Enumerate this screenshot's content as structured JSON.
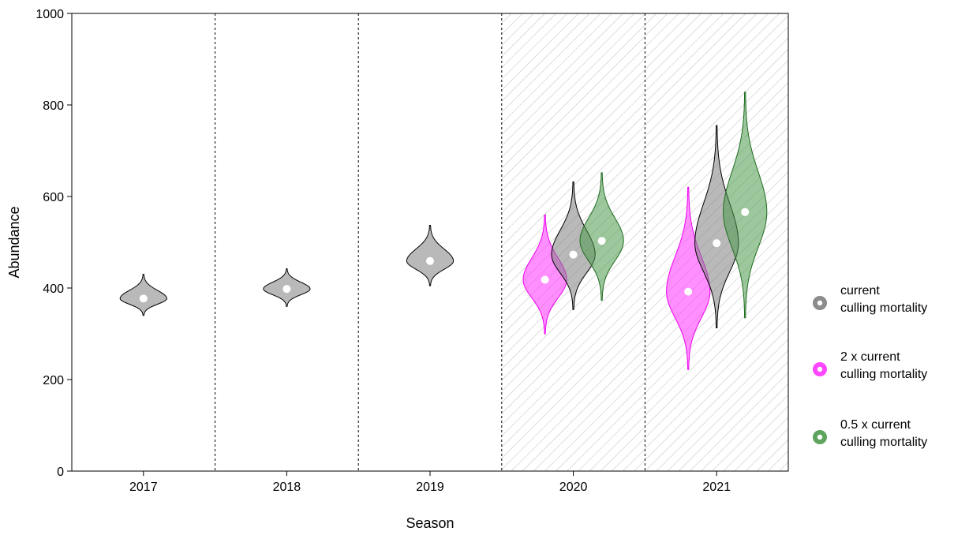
{
  "chart_data": {
    "type": "violin",
    "xlabel": "Season",
    "ylabel": "Abundance",
    "ylim": [
      0,
      1000
    ],
    "yticks": [
      0,
      200,
      400,
      600,
      800,
      1000
    ],
    "categories": [
      "2017",
      "2018",
      "2019",
      "2020",
      "2021"
    ],
    "projected_categories": [
      "2020",
      "2021"
    ],
    "projection_shading": "hatched",
    "grid": false,
    "legend_position": "right",
    "series": [
      {
        "name": "current\nculling mortality",
        "color": "#7f7f7f",
        "violins": [
          {
            "category": "2017",
            "median": 377,
            "min": 340,
            "max": 430
          },
          {
            "category": "2018",
            "median": 398,
            "min": 360,
            "max": 442
          },
          {
            "category": "2019",
            "median": 459,
            "min": 405,
            "max": 537
          },
          {
            "category": "2020",
            "median": 473,
            "min": 353,
            "max": 632
          },
          {
            "category": "2021",
            "median": 498,
            "min": 313,
            "max": 755
          }
        ]
      },
      {
        "name": "2 x current\nculling mortality",
        "color": "#ff33ff",
        "violins": [
          {
            "category": "2020",
            "median": 418,
            "min": 300,
            "max": 560
          },
          {
            "category": "2021",
            "median": 392,
            "min": 222,
            "max": 620
          }
        ]
      },
      {
        "name": "0.5 x current\nculling mortality",
        "color": "#4c9a4c",
        "violins": [
          {
            "category": "2020",
            "median": 503,
            "min": 373,
            "max": 652
          },
          {
            "category": "2021",
            "median": 566,
            "min": 335,
            "max": 828
          }
        ]
      }
    ]
  }
}
